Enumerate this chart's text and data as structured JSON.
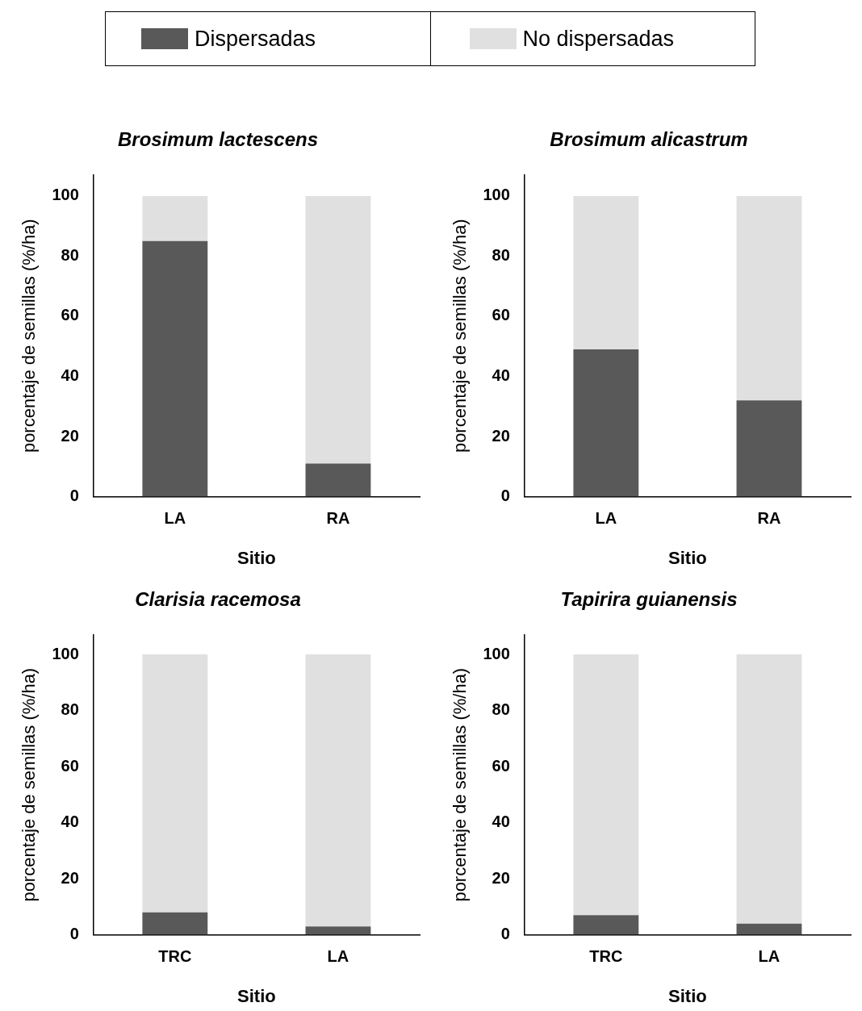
{
  "chart_data": [
    {
      "type": "bar",
      "title": "Brosimum lactescens",
      "xlabel": "Sitio",
      "ylabel": "porcentaje de semillas (%/ha)",
      "categories": [
        "LA",
        "RA"
      ],
      "stacked": true,
      "legend": "top",
      "grid": false,
      "ylim": [
        0,
        107
      ],
      "yticks": [
        0,
        20,
        40,
        60,
        80,
        100
      ],
      "series": [
        {
          "name": "Dispersadas",
          "color": "#595959",
          "values": [
            85,
            11
          ]
        },
        {
          "name": "No dispersadas",
          "color": "#e0e0e0",
          "values": [
            15,
            89
          ]
        }
      ]
    },
    {
      "type": "bar",
      "title": "Brosimum alicastrum",
      "xlabel": "Sitio",
      "ylabel": "porcentaje de semillas (%/ha)",
      "categories": [
        "LA",
        "RA"
      ],
      "stacked": true,
      "grid": false,
      "ylim": [
        0,
        107
      ],
      "yticks": [
        0,
        20,
        40,
        60,
        80,
        100
      ],
      "series": [
        {
          "color": "#595959",
          "values": [
            49,
            32
          ]
        },
        {
          "color": "#e0e0e0",
          "values": [
            51,
            68
          ]
        }
      ]
    },
    {
      "type": "bar",
      "title": "Clarisia racemosa",
      "xlabel": "Sitio",
      "ylabel": "porcentaje de semillas (%/ha)",
      "categories": [
        "TRC",
        "LA"
      ],
      "stacked": true,
      "grid": false,
      "ylim": [
        0,
        107
      ],
      "yticks": [
        0,
        20,
        40,
        60,
        80,
        100
      ],
      "series": [
        {
          "color": "#595959",
          "values": [
            8,
            3
          ]
        },
        {
          "color": "#e0e0e0",
          "values": [
            92,
            97
          ]
        }
      ]
    },
    {
      "type": "bar",
      "title": "Tapirira guianensis",
      "xlabel": "Sitio",
      "ylabel": "porcentaje de semillas (%/ha)",
      "categories": [
        "TRC",
        "LA"
      ],
      "stacked": true,
      "grid": false,
      "ylim": [
        0,
        107
      ],
      "yticks": [
        0,
        20,
        40,
        60,
        80,
        100
      ],
      "series": [
        {
          "color": "#595959",
          "values": [
            7,
            4
          ]
        },
        {
          "color": "#e0e0e0",
          "values": [
            93,
            96
          ]
        }
      ]
    }
  ]
}
